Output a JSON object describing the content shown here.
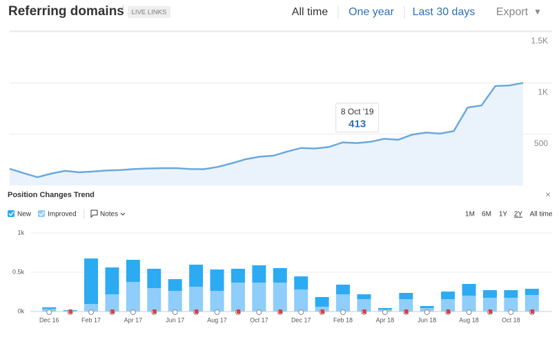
{
  "header": {
    "title": "Referring domains",
    "info": "i",
    "badge": "LIVE LINKS",
    "ranges": [
      "All time",
      "One year",
      "Last 30 days"
    ],
    "export": "Export",
    "caret": "▼"
  },
  "panel": {
    "title": "Position Changes Trend",
    "close": "×",
    "notes": "Notes",
    "ranges": [
      "1M",
      "6M",
      "1Y",
      "2Y",
      "All time"
    ]
  },
  "chart_data": [
    {
      "type": "area",
      "color": "#6aa8dc",
      "fill": "#eaf3fc",
      "values": [
        162,
        120,
        80,
        115,
        142,
        128,
        135,
        145,
        150,
        160,
        165,
        168,
        168,
        160,
        158,
        180,
        215,
        255,
        280,
        290,
        330,
        365,
        360,
        375,
        420,
        413,
        425,
        455,
        445,
        495,
        515,
        505,
        530,
        760,
        780,
        970,
        975,
        1000
      ],
      "tooltip": {
        "label": "8 Oct '19",
        "value": 413
      },
      "ylim": [
        0,
        1500
      ],
      "yticks": [
        500,
        {
          "value": 1000,
          "label": "1K"
        },
        {
          "value": 1500,
          "label": "1.5K"
        }
      ],
      "grid": true
    },
    {
      "type": "stacked-bar",
      "categories": [
        "Dec 16",
        null,
        "Feb 17",
        null,
        "Apr 17",
        null,
        "Jun 17",
        null,
        "Aug 17",
        null,
        "Oct 17",
        null,
        "Dec 17",
        null,
        "Feb 18",
        null,
        "Apr 18",
        null,
        "Jun 18",
        null,
        "Aug 18",
        null,
        "Oct 18",
        null
      ],
      "series": [
        {
          "name": "New",
          "color": "#2cabf2",
          "values": [
            20,
            8,
            579,
            342,
            281,
            246,
            149,
            280,
            272,
            176,
            220,
            185,
            166,
            123,
            123,
            61,
            18,
            79,
            26,
            96,
            149,
            97,
            97,
            79
          ]
        },
        {
          "name": "Improved",
          "color": "#8fcdfa",
          "values": [
            33,
            10,
            96,
            219,
            377,
            298,
            263,
            316,
            263,
            368,
            368,
            368,
            281,
            61,
            219,
            158,
            26,
            158,
            44,
            158,
            202,
            175,
            175,
            210
          ]
        }
      ],
      "ylim": [
        0,
        1000
      ],
      "yticks": [
        {
          "value": 0,
          "label": "0k"
        },
        {
          "value": 500,
          "label": "0.5k"
        },
        {
          "value": 1000,
          "label": "1k"
        }
      ],
      "grid": true
    }
  ]
}
